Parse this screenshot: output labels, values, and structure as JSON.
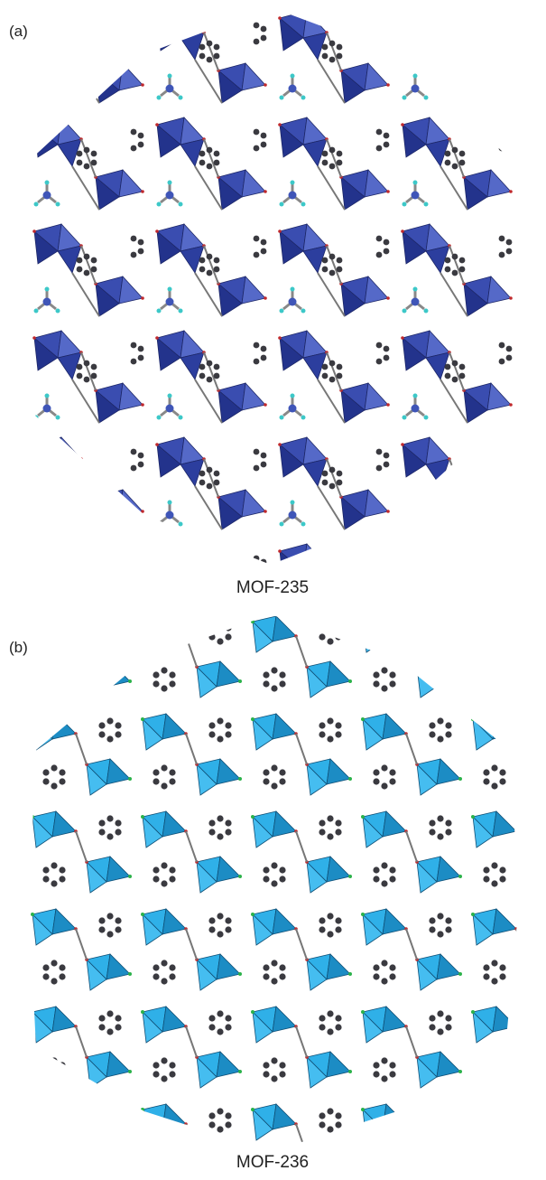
{
  "panels": [
    {
      "label": "(a)",
      "caption": "MOF-235"
    },
    {
      "label": "(b)",
      "caption": "MOF-236"
    }
  ]
}
